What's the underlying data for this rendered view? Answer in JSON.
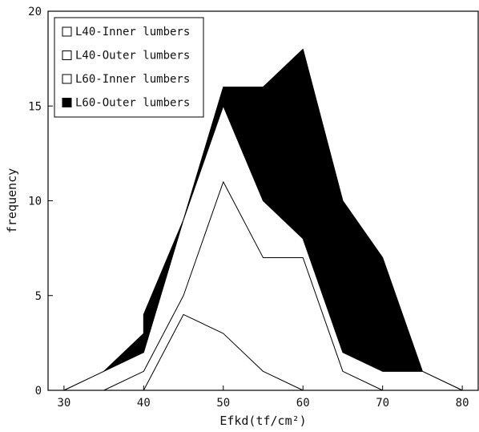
{
  "chart_data": {
    "type": "area",
    "title": "",
    "xlabel": "Efkd(tf/cm²)",
    "ylabel": "frequency",
    "xlim": [
      28,
      82
    ],
    "ylim": [
      0,
      20
    ],
    "xticks": [
      30,
      40,
      50,
      60,
      70,
      80
    ],
    "yticks": [
      0,
      5,
      10,
      15,
      20
    ],
    "legend_position": "top-left",
    "stacked": true,
    "series": [
      {
        "name": "L40-Inner lumbers",
        "fill": "#ffffff",
        "points": [
          [
            35,
            0
          ],
          [
            40,
            0
          ],
          [
            45,
            4
          ],
          [
            50,
            3
          ],
          [
            55,
            1
          ],
          [
            60,
            0
          ]
        ]
      },
      {
        "name": "L40-Outer lumbers",
        "fill": "#ffffff",
        "points": [
          [
            30,
            0
          ],
          [
            35,
            0
          ],
          [
            40,
            1
          ],
          [
            45,
            5
          ],
          [
            50,
            11
          ],
          [
            55,
            7
          ],
          [
            60,
            7
          ],
          [
            65,
            1
          ],
          [
            70,
            0
          ]
        ]
      },
      {
        "name": "L60-Inner lumbers",
        "fill": "#ffffff",
        "points": [
          [
            30,
            0
          ],
          [
            35,
            1
          ],
          [
            40,
            2
          ],
          [
            45,
            9
          ],
          [
            50,
            15
          ],
          [
            55,
            10
          ],
          [
            60,
            8
          ],
          [
            65,
            2
          ],
          [
            70,
            1
          ],
          [
            75,
            1
          ],
          [
            80,
            0
          ]
        ]
      },
      {
        "name": "L60-Outer lumbers",
        "fill": "#000000",
        "points": [
          [
            30,
            0
          ],
          [
            35,
            1
          ],
          [
            40,
            3
          ],
          [
            40,
            4
          ],
          [
            45,
            9
          ],
          [
            50,
            16
          ],
          [
            55,
            16
          ],
          [
            60,
            18
          ],
          [
            65,
            10
          ],
          [
            70,
            7
          ],
          [
            75,
            1
          ],
          [
            80,
            0
          ]
        ]
      }
    ]
  }
}
